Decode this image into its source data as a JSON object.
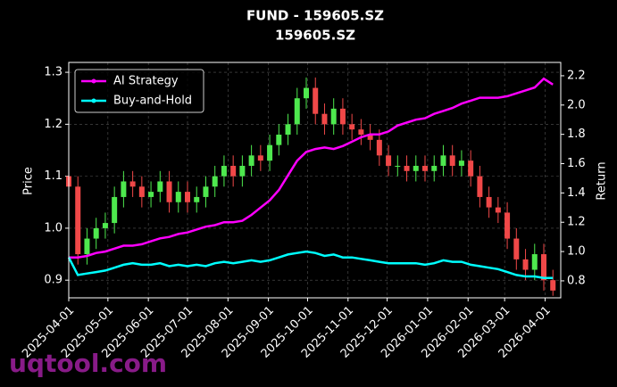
{
  "chart_data": {
    "type": "candlestick",
    "title": "FUND - 159605.SZ",
    "subtitle": "159605.SZ",
    "y_label": "Price",
    "y2_label": "Return",
    "watermark": "uqtool.com",
    "x": [
      "2025-04-01",
      "2025-04-08",
      "2025-04-15",
      "2025-04-22",
      "2025-04-29",
      "2025-05-06",
      "2025-05-13",
      "2025-05-20",
      "2025-05-27",
      "2025-06-03",
      "2025-06-10",
      "2025-06-17",
      "2025-06-24",
      "2025-07-01",
      "2025-07-08",
      "2025-07-15",
      "2025-07-22",
      "2025-07-29",
      "2025-08-05",
      "2025-08-12",
      "2025-08-19",
      "2025-08-26",
      "2025-09-02",
      "2025-09-09",
      "2025-09-16",
      "2025-09-23",
      "2025-09-30",
      "2025-10-07",
      "2025-10-14",
      "2025-10-21",
      "2025-10-28",
      "2025-11-04",
      "2025-11-11",
      "2025-11-18",
      "2025-11-25",
      "2025-12-02",
      "2025-12-09",
      "2025-12-16",
      "2025-12-23",
      "2025-12-30",
      "2026-01-06",
      "2026-01-13",
      "2026-01-20",
      "2026-01-27",
      "2026-02-03",
      "2026-02-10",
      "2026-02-17",
      "2026-02-24",
      "2026-03-03",
      "2026-03-10",
      "2026-03-17",
      "2026-03-24",
      "2026-03-31",
      "2026-04-07"
    ],
    "open": [
      1.1,
      1.08,
      0.95,
      0.98,
      1.0,
      1.01,
      1.06,
      1.09,
      1.08,
      1.06,
      1.07,
      1.09,
      1.05,
      1.07,
      1.05,
      1.06,
      1.08,
      1.1,
      1.12,
      1.1,
      1.12,
      1.14,
      1.13,
      1.16,
      1.18,
      1.2,
      1.25,
      1.27,
      1.22,
      1.2,
      1.23,
      1.2,
      1.19,
      1.18,
      1.17,
      1.14,
      1.12,
      1.12,
      1.11,
      1.12,
      1.11,
      1.12,
      1.14,
      1.12,
      1.13,
      1.1,
      1.06,
      1.04,
      1.03,
      0.98,
      0.94,
      0.92,
      0.95,
      0.9
    ],
    "high": [
      1.12,
      1.1,
      1.0,
      1.02,
      1.03,
      1.08,
      1.11,
      1.11,
      1.1,
      1.09,
      1.11,
      1.11,
      1.09,
      1.09,
      1.08,
      1.1,
      1.12,
      1.14,
      1.14,
      1.14,
      1.16,
      1.16,
      1.18,
      1.2,
      1.22,
      1.27,
      1.29,
      1.29,
      1.24,
      1.25,
      1.25,
      1.22,
      1.21,
      1.2,
      1.19,
      1.16,
      1.14,
      1.14,
      1.14,
      1.14,
      1.14,
      1.16,
      1.16,
      1.15,
      1.15,
      1.12,
      1.08,
      1.06,
      1.05,
      1.0,
      0.96,
      0.97,
      0.97,
      0.92
    ],
    "low": [
      1.06,
      0.93,
      0.93,
      0.96,
      0.98,
      0.99,
      1.04,
      1.06,
      1.04,
      1.04,
      1.05,
      1.03,
      1.03,
      1.03,
      1.03,
      1.04,
      1.06,
      1.08,
      1.08,
      1.08,
      1.1,
      1.11,
      1.11,
      1.14,
      1.16,
      1.18,
      1.23,
      1.2,
      1.18,
      1.18,
      1.18,
      1.17,
      1.16,
      1.15,
      1.12,
      1.1,
      1.1,
      1.09,
      1.09,
      1.09,
      1.09,
      1.1,
      1.1,
      1.1,
      1.08,
      1.04,
      1.02,
      1.01,
      0.96,
      0.92,
      0.9,
      0.9,
      0.88,
      0.87
    ],
    "close": [
      1.08,
      0.95,
      0.98,
      1.0,
      1.01,
      1.06,
      1.09,
      1.08,
      1.06,
      1.07,
      1.09,
      1.05,
      1.07,
      1.05,
      1.06,
      1.08,
      1.1,
      1.12,
      1.1,
      1.12,
      1.14,
      1.13,
      1.16,
      1.18,
      1.2,
      1.25,
      1.27,
      1.22,
      1.2,
      1.23,
      1.2,
      1.19,
      1.18,
      1.17,
      1.14,
      1.12,
      1.12,
      1.11,
      1.12,
      1.11,
      1.12,
      1.14,
      1.12,
      1.13,
      1.1,
      1.06,
      1.04,
      1.03,
      0.98,
      0.94,
      0.92,
      0.95,
      0.9,
      0.88
    ],
    "up_color": "#4ee84e",
    "down_color": "#f04848",
    "series": [
      {
        "name": "AI Strategy",
        "color": "#ff00ff",
        "axis": "y2",
        "values": [
          0.96,
          0.96,
          0.97,
          0.99,
          1.0,
          1.02,
          1.04,
          1.04,
          1.05,
          1.07,
          1.09,
          1.1,
          1.12,
          1.13,
          1.15,
          1.17,
          1.18,
          1.2,
          1.2,
          1.21,
          1.25,
          1.3,
          1.35,
          1.42,
          1.52,
          1.62,
          1.68,
          1.7,
          1.71,
          1.7,
          1.72,
          1.75,
          1.78,
          1.8,
          1.8,
          1.82,
          1.86,
          1.88,
          1.9,
          1.91,
          1.94,
          1.96,
          1.98,
          2.01,
          2.03,
          2.05,
          2.05,
          2.05,
          2.06,
          2.08,
          2.1,
          2.12,
          2.18,
          2.14
        ]
      },
      {
        "name": "Buy-and-Hold",
        "color": "#00ffff",
        "axis": "y2",
        "values": [
          0.96,
          0.84,
          0.85,
          0.86,
          0.87,
          0.89,
          0.91,
          0.92,
          0.91,
          0.91,
          0.92,
          0.9,
          0.91,
          0.9,
          0.91,
          0.9,
          0.92,
          0.93,
          0.92,
          0.93,
          0.94,
          0.93,
          0.94,
          0.96,
          0.98,
          0.99,
          1.0,
          0.99,
          0.97,
          0.98,
          0.96,
          0.96,
          0.95,
          0.94,
          0.93,
          0.92,
          0.92,
          0.92,
          0.92,
          0.91,
          0.92,
          0.94,
          0.93,
          0.93,
          0.91,
          0.9,
          0.89,
          0.88,
          0.86,
          0.84,
          0.83,
          0.83,
          0.82,
          0.82
        ]
      }
    ],
    "xlim": [
      "2025-04-01",
      "2026-04-13"
    ],
    "xticks": [
      "2025-04-01",
      "2025-05-01",
      "2025-06-01",
      "2025-07-01",
      "2025-08-01",
      "2025-09-01",
      "2025-10-01",
      "2025-11-01",
      "2025-12-01",
      "2026-01-01",
      "2026-02-01",
      "2026-03-01",
      "2026-04-01"
    ],
    "ylim": [
      0.866,
      1.319
    ],
    "yticks": [
      0.9,
      {
        "value": 1,
        "label": "1.0"
      },
      1.1,
      1.2,
      1.3
    ],
    "y2lim": [
      0.684,
      2.291
    ],
    "y2ticks": [
      0.8,
      {
        "value": 1,
        "label": "1.0"
      },
      1.2,
      1.4,
      1.6,
      1.8,
      {
        "value": 2,
        "label": "2.0"
      },
      2.2
    ],
    "grid": true,
    "legend": "upper left"
  }
}
